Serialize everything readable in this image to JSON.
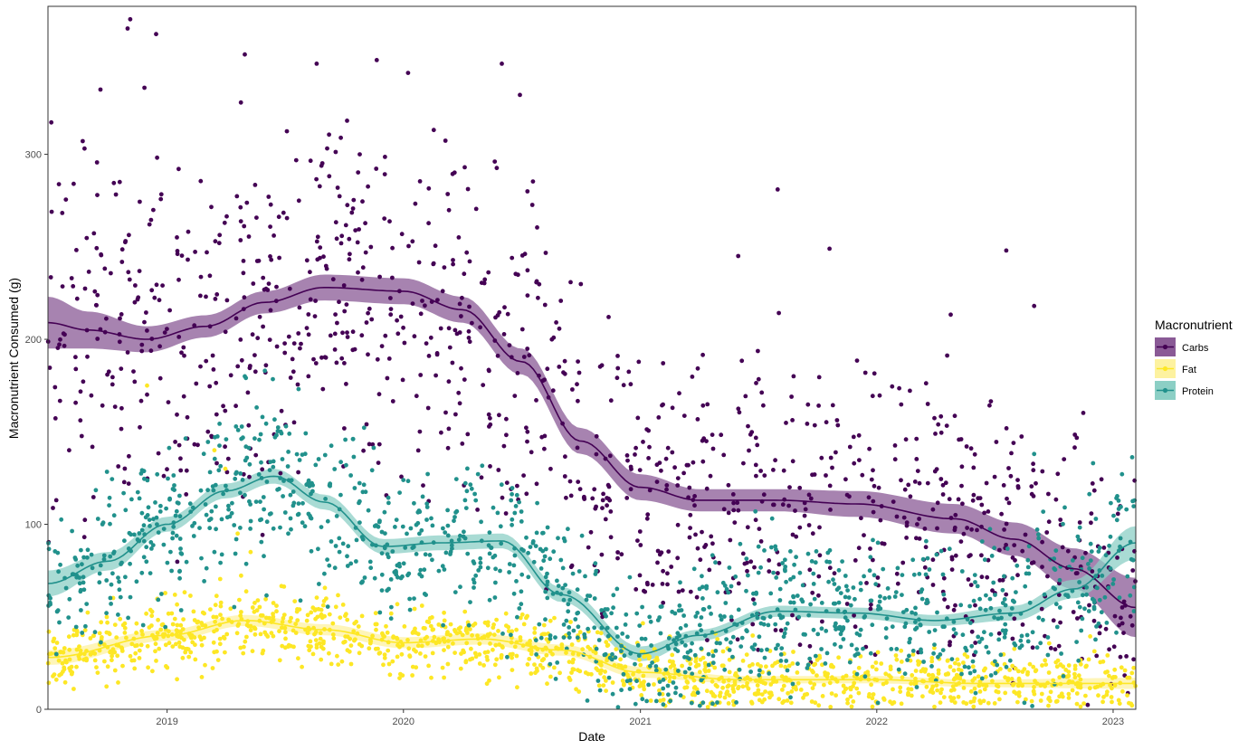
{
  "chart_data": {
    "type": "scatter",
    "xlabel": "Date",
    "ylabel": "Macronutrient Consumed (g)",
    "xlim": [
      "2018-07-01",
      "2023-02-05"
    ],
    "ylim": [
      0,
      380
    ],
    "x_ticks": [
      "2019-01-01",
      "2020-01-01",
      "2021-01-01",
      "2022-01-01",
      "2023-01-01"
    ],
    "x_tick_labels": [
      "2019",
      "2020",
      "2021",
      "2022",
      "2023"
    ],
    "y_ticks": [
      0,
      100,
      200,
      300
    ],
    "y_tick_labels": [
      "0",
      "100",
      "200",
      "300"
    ],
    "grid": false,
    "legend": {
      "title": "Macronutrient",
      "position": "right",
      "entries": [
        "Carbs",
        "Fat",
        "Protein"
      ]
    },
    "series": [
      {
        "name": "Carbs",
        "color": "#440154",
        "band_color": "#8a5a96",
        "smooth": {
          "x": [
            "2018-07-01",
            "2018-09-01",
            "2018-12-01",
            "2019-03-01",
            "2019-06-01",
            "2019-09-01",
            "2020-01-01",
            "2020-04-01",
            "2020-07-01",
            "2020-10-01",
            "2021-01-01",
            "2021-04-01",
            "2021-08-01",
            "2021-12-01",
            "2022-05-01",
            "2022-08-01",
            "2022-11-01",
            "2023-02-05"
          ],
          "y": [
            209,
            205,
            200,
            207,
            220,
            228,
            226,
            216,
            188,
            145,
            120,
            113,
            113,
            111,
            103,
            92,
            76,
            55
          ],
          "se": [
            14,
            10,
            7,
            6,
            6,
            7,
            7,
            7,
            7,
            7,
            7,
            6,
            6,
            7,
            8,
            9,
            11,
            16
          ]
        },
        "scatter": {
          "start": "2018-07-01",
          "end": "2023-02-05",
          "count": 1150,
          "spread": 38,
          "min": 1,
          "max": 383,
          "seed": 101,
          "extra": [
            [
              "2018-11-01",
              368
            ],
            [
              "2018-11-27",
              336
            ],
            [
              "2019-05-01",
              354
            ],
            [
              "2019-08-20",
              349
            ],
            [
              "2020-06-01",
              349
            ],
            [
              "2018-12-15",
              365
            ],
            [
              "2018-11-05",
              373
            ],
            [
              "2018-09-20",
              335
            ],
            [
              "2019-04-25",
              328
            ],
            [
              "2019-05-02",
              385
            ],
            [
              "2021-08-01",
              281
            ],
            [
              "2021-06-01",
              245
            ],
            [
              "2021-10-20",
              249
            ],
            [
              "2022-07-20",
              248
            ],
            [
              "2022-09-01",
              218
            ]
          ]
        }
      },
      {
        "name": "Fat",
        "color": "#fde725",
        "band_color": "#fdf2a0",
        "smooth": {
          "x": [
            "2018-07-01",
            "2019-01-01",
            "2019-05-01",
            "2019-09-01",
            "2020-01-01",
            "2020-05-01",
            "2020-09-01",
            "2021-01-01",
            "2021-06-01",
            "2022-01-01",
            "2022-06-01",
            "2023-02-05"
          ],
          "y": [
            28,
            40,
            48,
            43,
            36,
            38,
            32,
            20,
            16,
            16,
            14,
            14
          ],
          "se": [
            4,
            3,
            3,
            3,
            3,
            3,
            3,
            3,
            2,
            2,
            2,
            3
          ]
        },
        "scatter": {
          "start": "2018-07-01",
          "end": "2023-02-05",
          "count": 1350,
          "spread": 11,
          "min": 1,
          "max": 180,
          "seed": 202,
          "extra": [
            [
              "2019-03-15",
              140
            ],
            [
              "2019-04-01",
              130
            ],
            [
              "2018-12-01",
              175
            ],
            [
              "2019-04-20",
              95
            ],
            [
              "2019-05-10",
              85
            ]
          ]
        }
      },
      {
        "name": "Protein",
        "color": "#21918c",
        "band_color": "#8ccfc5",
        "smooth": {
          "x": [
            "2018-07-01",
            "2018-10-01",
            "2019-01-01",
            "2019-04-01",
            "2019-06-15",
            "2019-09-01",
            "2019-12-01",
            "2020-03-01",
            "2020-06-01",
            "2020-09-01",
            "2021-01-01",
            "2021-04-01",
            "2021-08-01",
            "2021-12-01",
            "2022-04-01",
            "2022-08-01",
            "2022-11-01",
            "2023-02-05"
          ],
          "y": [
            68,
            80,
            100,
            118,
            126,
            112,
            88,
            90,
            91,
            62,
            30,
            40,
            53,
            52,
            48,
            52,
            65,
            90
          ],
          "se": [
            7,
            5,
            4,
            4,
            4,
            4,
            4,
            4,
            4,
            4,
            4,
            3,
            3,
            3,
            3,
            4,
            5,
            9
          ]
        },
        "scatter": {
          "start": "2018-07-01",
          "end": "2023-02-05",
          "count": 1300,
          "spread": 22,
          "min": 1,
          "max": 190,
          "seed": 303,
          "extra": [
            [
              "2019-05-01",
              180
            ],
            [
              "2019-06-01",
              183
            ],
            [
              "2022-09-01",
              138
            ],
            [
              "2022-12-01",
              133
            ]
          ]
        }
      }
    ]
  }
}
